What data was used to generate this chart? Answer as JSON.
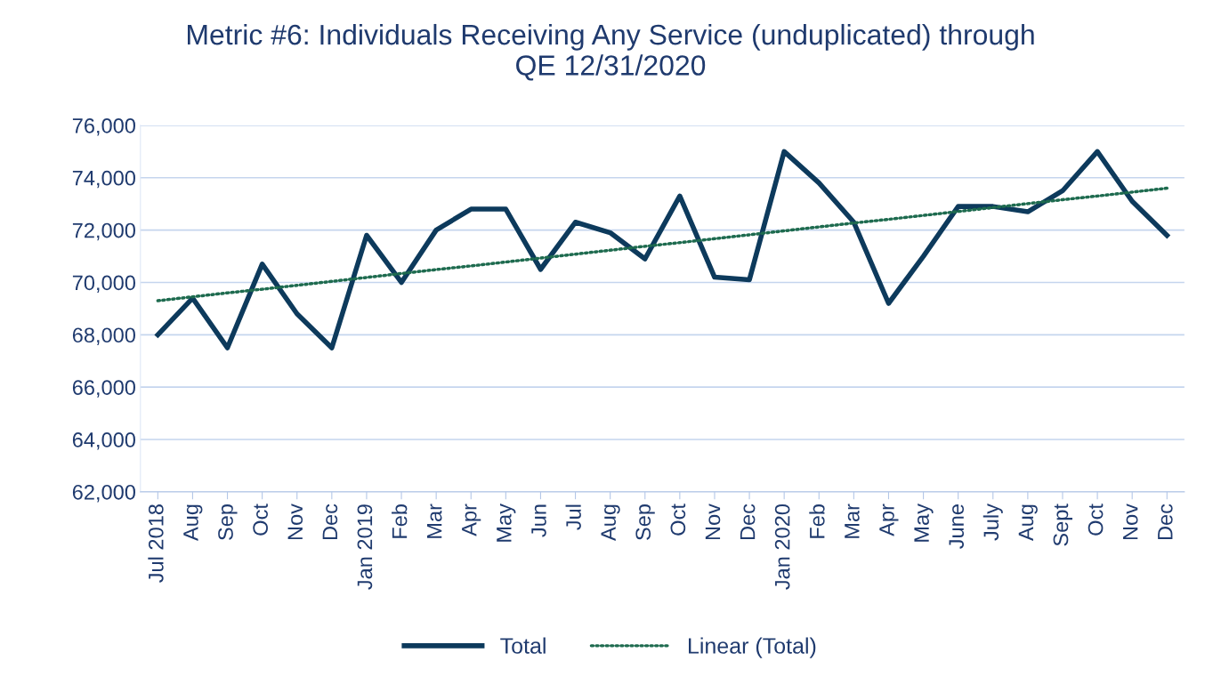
{
  "chart_data": {
    "type": "line",
    "title": "Metric #6: Individuals Receiving Any Service (unduplicated) through\nQE 12/31/2020",
    "categories": [
      "Jul 2018",
      "Aug",
      "Sep",
      "Oct",
      "Nov",
      "Dec",
      "Jan 2019",
      "Feb",
      "Mar",
      "Apr",
      "May",
      "Jun",
      "Jul",
      "Aug",
      "Sep",
      "Oct",
      "Nov",
      "Dec",
      "Jan 2020",
      "Feb",
      "Mar",
      "Apr",
      "May",
      "June",
      "July",
      "Aug",
      "Sept",
      "Oct",
      "Nov",
      "Dec"
    ],
    "series": [
      {
        "name": "Total",
        "color": "#0d3a5c",
        "line_style": "solid",
        "values": [
          68000,
          69400,
          67500,
          70700,
          68800,
          67500,
          71800,
          70000,
          72000,
          72800,
          72800,
          70500,
          72300,
          71900,
          70900,
          73300,
          70200,
          70100,
          75000,
          73800,
          72300,
          69200,
          71000,
          72900,
          72900,
          72700,
          73500,
          75000,
          73100,
          71800
        ]
      },
      {
        "name": "Linear (Total)",
        "color": "#1e6b4f",
        "line_style": "dotted",
        "values": [
          69300,
          69450,
          69600,
          69740,
          69890,
          70040,
          70190,
          70340,
          70490,
          70630,
          70780,
          70930,
          71080,
          71230,
          71380,
          71520,
          71670,
          71820,
          71970,
          72120,
          72270,
          72410,
          72560,
          72710,
          72860,
          73010,
          73160,
          73300,
          73450,
          73600
        ]
      }
    ],
    "ylim": [
      62000,
      76000
    ],
    "yticks": [
      {
        "value": 62000,
        "label": "62,000"
      },
      {
        "value": 64000,
        "label": "64,000"
      },
      {
        "value": 66000,
        "label": "66,000"
      },
      {
        "value": 68000,
        "label": "68,000"
      },
      {
        "value": 70000,
        "label": "70,000"
      },
      {
        "value": 72000,
        "label": "72,000"
      },
      {
        "value": 74000,
        "label": "74,000"
      },
      {
        "value": 76000,
        "label": "76,000"
      }
    ],
    "grid": "y",
    "legend": "bottom",
    "marker": "none"
  }
}
